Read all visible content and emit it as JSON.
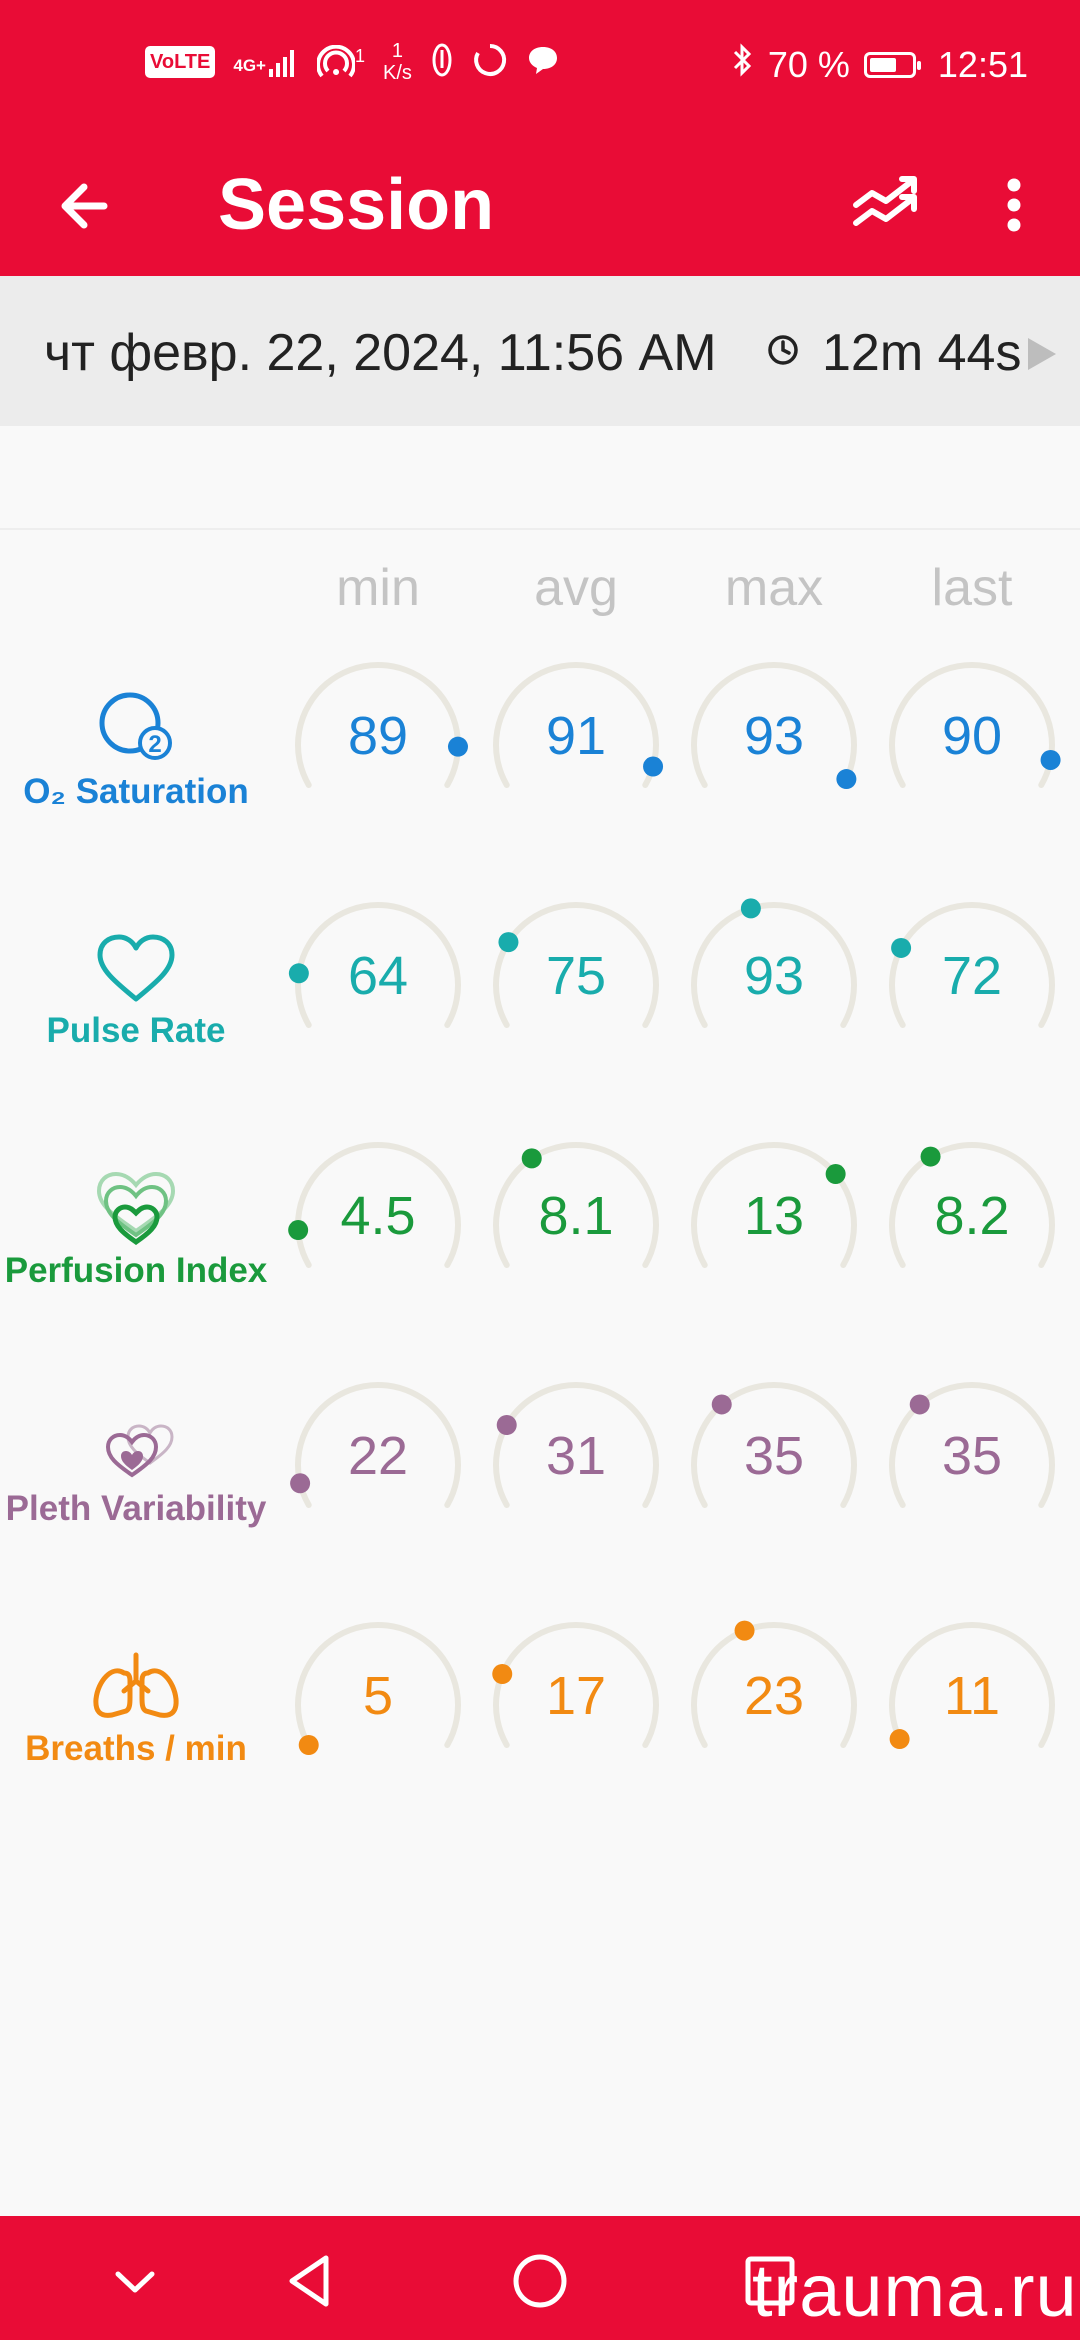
{
  "status_bar": {
    "volte_label": "VoLTE",
    "signal_label": "4G+",
    "hotspot_count": "1",
    "net_speed_value": "1",
    "net_speed_unit": "K/s",
    "battery_text": "70 %",
    "battery_level": 0.7,
    "time": "12:51"
  },
  "app_bar": {
    "title": "Session",
    "back_icon": "arrow-left-icon",
    "trend_icon": "trend-lines-icon",
    "more_icon": "more-vert-icon"
  },
  "session": {
    "datetime": "чт февр. 22, 2024, 11:56 AM",
    "duration": "12m 44s"
  },
  "columns": [
    "min",
    "avg",
    "max",
    "last"
  ],
  "metrics": [
    {
      "label": "O₂ Saturation",
      "icon": "o2-icon",
      "color": "#1a82d6",
      "values": [
        "89",
        "91",
        "93",
        "90"
      ],
      "fractions": [
        0.88,
        0.94,
        0.98,
        0.92
      ]
    },
    {
      "label": "Pulse Rate",
      "icon": "heart-icon",
      "color": "#19acac",
      "values": [
        "64",
        "75",
        "93",
        "72"
      ],
      "fractions": [
        0.16,
        0.26,
        0.43,
        0.24
      ]
    },
    {
      "label": "Perfusion Index",
      "icon": "perfusion-heart-icon",
      "color": "#1a9a3c",
      "values": [
        "4.5",
        "8.1",
        "13",
        "8.2"
      ],
      "fractions": [
        0.11,
        0.36,
        0.71,
        0.37
      ]
    },
    {
      "label": "Pleth Variability",
      "icon": "pleth-hearts-icon",
      "color": "#9b6a95",
      "values": [
        "22",
        "31",
        "35",
        "35"
      ],
      "fractions": [
        0.07,
        0.25,
        0.33,
        0.33
      ]
    },
    {
      "label": "Breaths / min",
      "icon": "lungs-icon",
      "color": "#f28a12",
      "values": [
        "5",
        "17",
        "23",
        "11"
      ],
      "fractions": [
        0.0,
        0.22,
        0.41,
        0.02
      ]
    }
  ],
  "nav_bar": {
    "watermark": "trauma.ru"
  }
}
